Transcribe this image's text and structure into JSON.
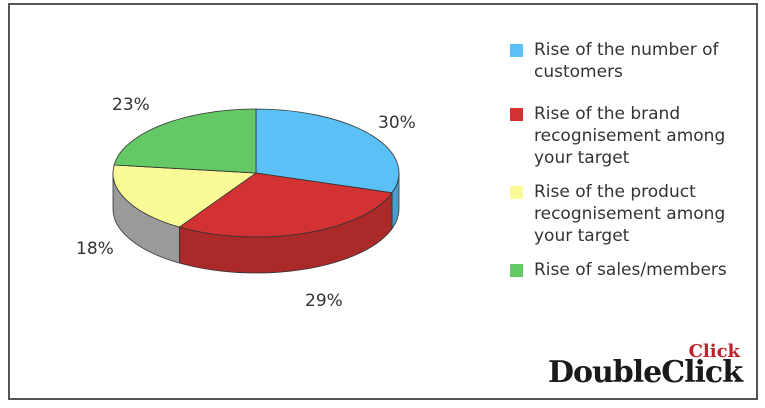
{
  "chart_data": {
    "type": "pie",
    "three_d": true,
    "slices": [
      {
        "label": "Rise of the number of customers",
        "value": 30,
        "label_text": "30%",
        "color": "#5bc0f5"
      },
      {
        "label": "Rise of the brand recognisement among your target",
        "value": 29,
        "label_text": "29%",
        "color": "#d23232"
      },
      {
        "label": "Rise of the product recognisement among your target",
        "value": 18,
        "label_text": "18%",
        "color": "#fafa96"
      },
      {
        "label": "Rise of sales/members",
        "value": 23,
        "label_text": "23%",
        "color": "#64c864"
      }
    ],
    "legend": {
      "position": "right",
      "items": [
        {
          "text": "Rise of the number of customers",
          "color": "#5bc0f5"
        },
        {
          "text": "Rise of the brand recognisement among your target",
          "color": "#d23232"
        },
        {
          "text": "Rise of the product recognisement among your target",
          "color": "#fafa96"
        },
        {
          "text": "Rise of sales/members",
          "color": "#64c864"
        }
      ]
    }
  },
  "logo": {
    "main": "DoubleClick",
    "top": "Click"
  }
}
